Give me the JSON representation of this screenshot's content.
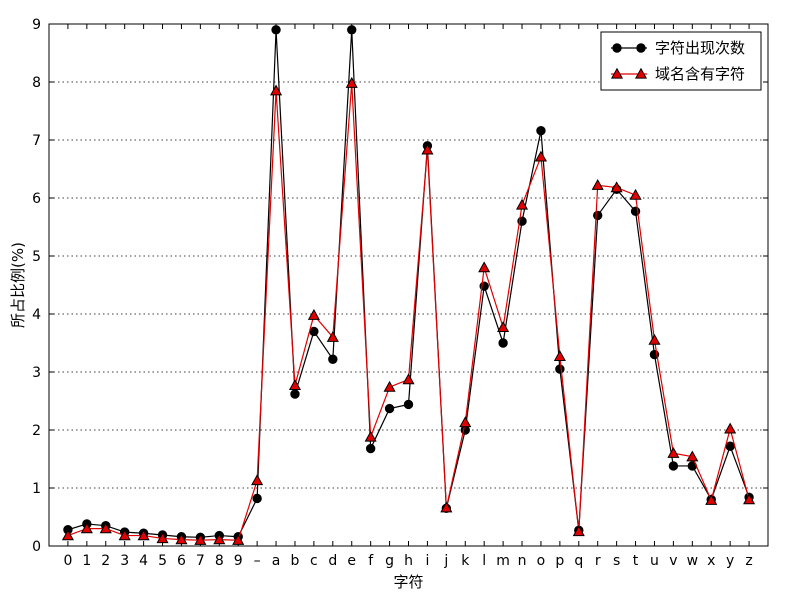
{
  "chart_data": {
    "type": "line",
    "xlabel": "字符",
    "ylabel": "所占比例(%)",
    "ylim": [
      0,
      9
    ],
    "yticks": [
      0,
      1,
      2,
      3,
      4,
      5,
      6,
      7,
      8,
      9
    ],
    "grid": "dotted",
    "legend_position": "top-right",
    "categories": [
      "0",
      "1",
      "2",
      "3",
      "4",
      "5",
      "6",
      "7",
      "8",
      "9",
      "–",
      "a",
      "b",
      "c",
      "d",
      "e",
      "f",
      "g",
      "h",
      "i",
      "j",
      "k",
      "l",
      "m",
      "n",
      "o",
      "p",
      "q",
      "r",
      "s",
      "t",
      "u",
      "v",
      "w",
      "x",
      "y",
      "z"
    ],
    "series": [
      {
        "name": "字符出现次数",
        "color": "#000000",
        "marker": "circle",
        "values": [
          0.28,
          0.38,
          0.35,
          0.24,
          0.22,
          0.19,
          0.16,
          0.15,
          0.18,
          0.16,
          0.82,
          8.9,
          2.62,
          3.7,
          3.22,
          8.9,
          1.68,
          2.37,
          2.44,
          6.9,
          0.65,
          2.0,
          4.48,
          3.5,
          5.6,
          7.16,
          3.05,
          0.27,
          5.7,
          6.15,
          5.77,
          3.3,
          1.38,
          1.38,
          0.8,
          1.72,
          0.84
        ]
      },
      {
        "name": "域名含有字符",
        "color": "#e00000",
        "marker": "triangle",
        "values": [
          0.18,
          0.3,
          0.3,
          0.18,
          0.18,
          0.13,
          0.11,
          0.1,
          0.11,
          0.1,
          1.13,
          7.85,
          2.77,
          3.98,
          3.6,
          7.98,
          1.88,
          2.74,
          2.87,
          6.83,
          0.66,
          2.13,
          4.8,
          3.77,
          5.88,
          6.71,
          3.27,
          0.25,
          6.22,
          6.18,
          6.05,
          3.55,
          1.6,
          1.54,
          0.79,
          2.02,
          0.8
        ]
      }
    ]
  }
}
